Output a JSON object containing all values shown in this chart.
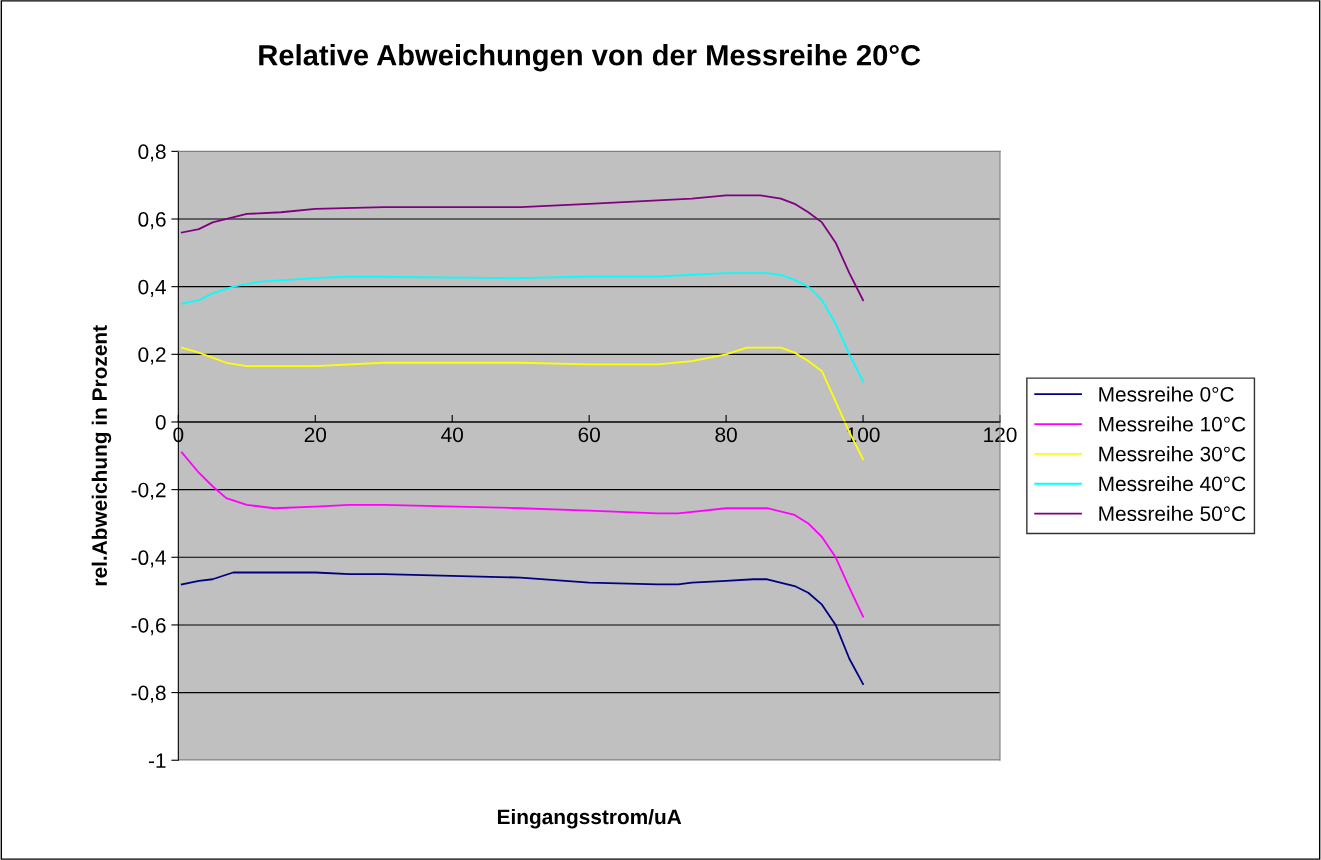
{
  "chart_data": {
    "type": "line",
    "title": "Relative Abweichungen von der Messreihe 20°C",
    "xlabel": "Eingangsstrom/uA",
    "ylabel": "rel.Abweichung in Prozent",
    "xlim": [
      0,
      120
    ],
    "xticks": [
      0,
      20,
      40,
      60,
      80,
      100,
      120
    ],
    "ylim": [
      -1,
      0.8
    ],
    "yticks": [
      {
        "value": -1,
        "label": "-1"
      },
      {
        "value": -0.8,
        "label": "-0,8"
      },
      {
        "value": -0.6,
        "label": "-0,6"
      },
      {
        "value": -0.4,
        "label": "-0,4"
      },
      {
        "value": -0.2,
        "label": "-0,2"
      },
      {
        "value": 0,
        "label": "0"
      },
      {
        "value": 0.2,
        "label": "0,2"
      },
      {
        "value": 0.4,
        "label": "0,4"
      },
      {
        "value": 0.6,
        "label": "0,6"
      },
      {
        "value": 0.8,
        "label": "0,8"
      }
    ],
    "grid": "y",
    "legend": "right",
    "marker": "none",
    "line_style": "solid",
    "series": [
      {
        "name": "Messreihe 0°C",
        "color": "#000080",
        "x": [
          0.5,
          3,
          5,
          8,
          10,
          20,
          25,
          30,
          50,
          60,
          70,
          73,
          75,
          80,
          84,
          86,
          90,
          92,
          94,
          96,
          98,
          100
        ],
        "values": [
          -0.48,
          -0.47,
          -0.465,
          -0.445,
          -0.445,
          -0.445,
          -0.45,
          -0.45,
          -0.46,
          -0.475,
          -0.48,
          -0.48,
          -0.475,
          -0.47,
          -0.465,
          -0.465,
          -0.485,
          -0.505,
          -0.54,
          -0.6,
          -0.7,
          -0.775
        ]
      },
      {
        "name": "Messreihe 10°C",
        "color": "#ff00ff",
        "x": [
          0.5,
          3,
          5,
          7,
          10,
          14,
          20,
          25,
          30,
          50,
          60,
          70,
          73,
          80,
          86,
          90,
          92,
          94,
          96,
          98,
          100
        ],
        "values": [
          -0.09,
          -0.15,
          -0.19,
          -0.225,
          -0.245,
          -0.255,
          -0.25,
          -0.245,
          -0.245,
          -0.255,
          -0.262,
          -0.27,
          -0.27,
          -0.255,
          -0.255,
          -0.275,
          -0.3,
          -0.34,
          -0.4,
          -0.49,
          -0.575
        ]
      },
      {
        "name": "Messreihe 30°C",
        "color": "#ffff00",
        "x": [
          0.5,
          3,
          7,
          10,
          20,
          30,
          50,
          60,
          70,
          75,
          80,
          83,
          88,
          90,
          92,
          94,
          96,
          98,
          100
        ],
        "values": [
          0.22,
          0.205,
          0.175,
          0.165,
          0.165,
          0.175,
          0.175,
          0.17,
          0.17,
          0.18,
          0.2,
          0.22,
          0.22,
          0.205,
          0.18,
          0.15,
          0.06,
          -0.03,
          -0.11
        ]
      },
      {
        "name": "Messreihe 40°C",
        "color": "#00ffff",
        "x": [
          0.5,
          3,
          5,
          8,
          12,
          20,
          25,
          50,
          60,
          70,
          80,
          86,
          88,
          90,
          92,
          94,
          96,
          98,
          100
        ],
        "values": [
          0.35,
          0.36,
          0.38,
          0.4,
          0.415,
          0.425,
          0.43,
          0.425,
          0.43,
          0.43,
          0.44,
          0.44,
          0.435,
          0.42,
          0.4,
          0.36,
          0.29,
          0.2,
          0.12
        ]
      },
      {
        "name": "Messreihe 50°C",
        "color": "#800080",
        "x": [
          0.5,
          3,
          5,
          10,
          15,
          20,
          30,
          50,
          60,
          70,
          75,
          80,
          85,
          88,
          90,
          92,
          94,
          96,
          98,
          100
        ],
        "values": [
          0.56,
          0.57,
          0.59,
          0.615,
          0.62,
          0.63,
          0.635,
          0.635,
          0.645,
          0.655,
          0.66,
          0.67,
          0.67,
          0.66,
          0.645,
          0.62,
          0.59,
          0.53,
          0.44,
          0.36
        ]
      }
    ]
  }
}
